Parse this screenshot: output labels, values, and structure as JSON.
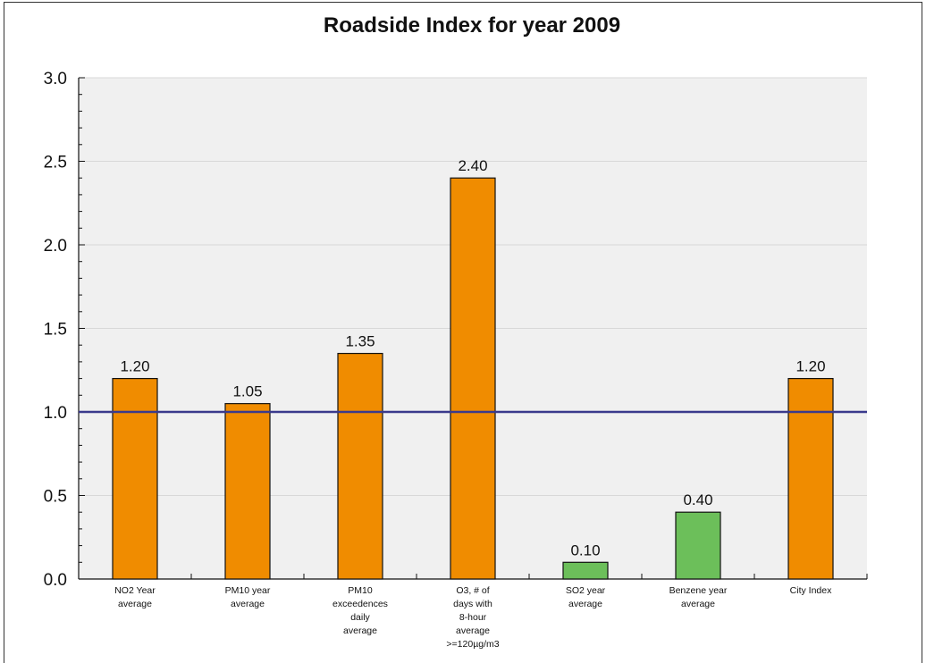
{
  "chart_data": {
    "type": "bar",
    "title": "Roadside Index for year 2009",
    "xlabel": "",
    "ylabel": "",
    "ylim": [
      0,
      3.0
    ],
    "yticks": [
      "0.0",
      "0.5",
      "1.0",
      "1.5",
      "2.0",
      "2.5",
      "3.0"
    ],
    "grid": true,
    "categories": [
      [
        "NO2 Year",
        "average"
      ],
      [
        "PM10 year",
        "average"
      ],
      [
        "PM10",
        "exceedences",
        "daily",
        "average"
      ],
      [
        "O3, # of",
        "days with",
        "8-hour",
        "average",
        ">=120µg/m3"
      ],
      [
        "SO2 year",
        "average"
      ],
      [
        "Benzene year",
        "average"
      ],
      [
        "City Index"
      ]
    ],
    "values": [
      1.2,
      1.05,
      1.35,
      2.4,
      0.1,
      0.4,
      1.2
    ],
    "value_labels": [
      "1.20",
      "1.05",
      "1.35",
      "2.40",
      "0.10",
      "0.40",
      "1.20"
    ],
    "bar_colors": [
      "#f08c00",
      "#f08c00",
      "#f08c00",
      "#f08c00",
      "#6cbf5a",
      "#6cbf5a",
      "#f08c00"
    ],
    "reference_line": {
      "value": 1.0,
      "color": "#3a3a8c"
    },
    "plot_background": "#f0f0f0"
  }
}
